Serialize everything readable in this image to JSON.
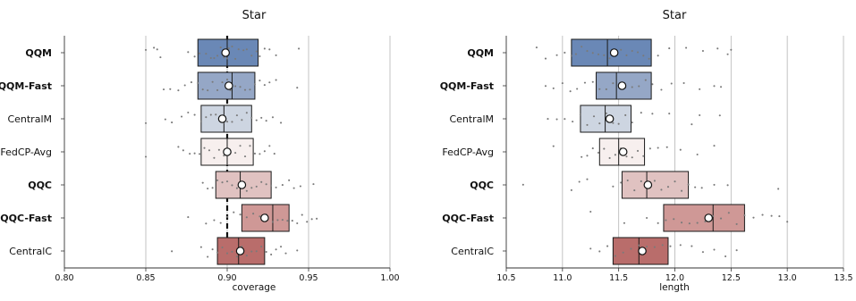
{
  "chart_data": [
    {
      "type": "box",
      "title": "Star",
      "xlabel": "coverage",
      "xlim": [
        0.8,
        1.0
      ],
      "xticks": [
        "0.80",
        "0.85",
        "0.90",
        "0.95",
        "1.00"
      ],
      "xtick_values": [
        0.8,
        0.85,
        0.9,
        0.95,
        1.0
      ],
      "grid": "vertical",
      "reference_line": 0.9,
      "categories": [
        "QQM",
        "QQM-Fast",
        "CentralM",
        "FedCP-Avg",
        "QQC",
        "QQC-Fast",
        "CentralC"
      ],
      "bold_categories": [
        "QQM",
        "QQM-Fast",
        "QQC",
        "QQC-Fast"
      ],
      "colors": [
        "#6a88b6",
        "#95a7c6",
        "#cdd5e1",
        "#f7efee",
        "#e0c2c1",
        "#cf9896",
        "#b96d6b"
      ],
      "boxes": [
        {
          "q1": 0.882,
          "median": 0.9,
          "q3": 0.919,
          "mean": 0.899,
          "points": [
            0.85,
            0.855,
            0.857,
            0.859,
            0.876,
            0.88,
            0.883,
            0.887,
            0.89,
            0.892,
            0.894,
            0.896,
            0.898,
            0.9,
            0.901,
            0.903,
            0.905,
            0.907,
            0.91,
            0.912,
            0.915,
            0.918,
            0.92,
            0.923,
            0.926,
            0.93,
            0.944
          ]
        },
        {
          "q1": 0.882,
          "median": 0.903,
          "q3": 0.917,
          "mean": 0.901,
          "points": [
            0.861,
            0.865,
            0.87,
            0.874,
            0.878,
            0.882,
            0.885,
            0.888,
            0.891,
            0.894,
            0.897,
            0.9,
            0.902,
            0.905,
            0.908,
            0.911,
            0.914,
            0.917,
            0.92,
            0.923,
            0.926,
            0.93,
            0.943
          ]
        },
        {
          "q1": 0.884,
          "median": 0.898,
          "q3": 0.915,
          "mean": 0.897,
          "points": [
            0.85,
            0.862,
            0.866,
            0.872,
            0.876,
            0.88,
            0.884,
            0.887,
            0.89,
            0.893,
            0.896,
            0.898,
            0.9,
            0.903,
            0.906,
            0.909,
            0.912,
            0.915,
            0.918,
            0.921,
            0.924,
            0.928,
            0.933
          ]
        },
        {
          "q1": 0.884,
          "median": 0.9,
          "q3": 0.916,
          "mean": 0.9,
          "points": [
            0.85,
            0.87,
            0.873,
            0.877,
            0.88,
            0.883,
            0.886,
            0.889,
            0.892,
            0.895,
            0.898,
            0.9,
            0.902,
            0.905,
            0.908,
            0.911,
            0.914,
            0.917,
            0.92,
            0.923,
            0.926,
            0.929
          ]
        },
        {
          "q1": 0.893,
          "median": 0.908,
          "q3": 0.927,
          "mean": 0.909,
          "points": [
            0.885,
            0.888,
            0.891,
            0.894,
            0.897,
            0.9,
            0.903,
            0.906,
            0.909,
            0.912,
            0.915,
            0.918,
            0.921,
            0.924,
            0.927,
            0.93,
            0.934,
            0.938,
            0.941,
            0.945,
            0.953
          ]
        },
        {
          "q1": 0.909,
          "median": 0.928,
          "q3": 0.938,
          "mean": 0.923,
          "points": [
            0.876,
            0.887,
            0.892,
            0.896,
            0.9,
            0.904,
            0.908,
            0.912,
            0.916,
            0.92,
            0.924,
            0.928,
            0.931,
            0.934,
            0.937,
            0.94,
            0.943,
            0.946,
            0.949,
            0.952,
            0.955
          ]
        },
        {
          "q1": 0.894,
          "median": 0.907,
          "q3": 0.923,
          "mean": 0.908,
          "points": [
            0.866,
            0.884,
            0.888,
            0.891,
            0.894,
            0.897,
            0.9,
            0.903,
            0.906,
            0.909,
            0.912,
            0.915,
            0.918,
            0.921,
            0.924,
            0.927,
            0.93,
            0.933,
            0.936,
            0.943
          ]
        }
      ]
    },
    {
      "type": "box",
      "title": "Star",
      "xlabel": "length",
      "xlim": [
        10.5,
        13.5
      ],
      "xticks": [
        "10.5",
        "11.0",
        "11.5",
        "12.0",
        "12.5",
        "13.0",
        "13.5"
      ],
      "xtick_values": [
        10.5,
        11.0,
        11.5,
        12.0,
        12.5,
        13.0,
        13.5
      ],
      "grid": "vertical",
      "categories": [
        "QQM",
        "QQM-Fast",
        "CentralM",
        "FedCP-Avg",
        "QQC",
        "QQC-Fast",
        "CentralC"
      ],
      "bold_categories": [
        "QQM",
        "QQM-Fast",
        "QQC",
        "QQC-Fast"
      ],
      "colors": [
        "#6a88b6",
        "#95a7c6",
        "#cdd5e1",
        "#f7efee",
        "#e0c2c1",
        "#cf9896",
        "#b96d6b"
      ],
      "boxes": [
        {
          "q1": 11.08,
          "median": 11.4,
          "q3": 11.79,
          "mean": 11.46,
          "points": [
            10.77,
            10.85,
            10.95,
            11.02,
            11.08,
            11.12,
            11.17,
            11.22,
            11.27,
            11.32,
            11.37,
            11.42,
            11.47,
            11.52,
            11.57,
            11.62,
            11.67,
            11.72,
            11.77,
            11.85,
            11.95,
            12.1,
            12.25,
            12.38,
            12.47,
            12.5
          ]
        },
        {
          "q1": 11.3,
          "median": 11.48,
          "q3": 11.79,
          "mean": 11.53,
          "points": [
            10.85,
            10.92,
            11.0,
            11.07,
            11.13,
            11.2,
            11.27,
            11.33,
            11.39,
            11.45,
            11.5,
            11.56,
            11.62,
            11.68,
            11.74,
            11.8,
            11.88,
            11.97,
            12.08,
            12.22,
            12.35,
            12.41
          ]
        },
        {
          "q1": 11.16,
          "median": 11.38,
          "q3": 11.61,
          "mean": 11.42,
          "points": [
            10.87,
            10.95,
            11.02,
            11.09,
            11.16,
            11.22,
            11.28,
            11.33,
            11.39,
            11.45,
            11.5,
            11.56,
            11.62,
            11.7,
            11.8,
            11.95,
            12.15,
            12.22,
            12.4
          ]
        },
        {
          "q1": 11.33,
          "median": 11.5,
          "q3": 11.73,
          "mean": 11.54,
          "points": [
            10.92,
            11.17,
            11.22,
            11.27,
            11.32,
            11.37,
            11.42,
            11.47,
            11.52,
            11.57,
            11.62,
            11.67,
            11.72,
            11.78,
            11.85,
            11.93,
            12.05,
            12.2,
            12.35
          ]
        },
        {
          "q1": 11.53,
          "median": 11.75,
          "q3": 12.12,
          "mean": 11.76,
          "points": [
            10.65,
            11.08,
            11.15,
            11.22,
            11.45,
            11.52,
            11.58,
            11.64,
            11.7,
            11.76,
            11.82,
            11.88,
            11.94,
            12.0,
            12.06,
            12.12,
            12.18,
            12.24,
            12.35,
            12.47,
            12.92
          ]
        },
        {
          "q1": 11.9,
          "median": 12.34,
          "q3": 12.62,
          "mean": 12.3,
          "points": [
            11.25,
            11.55,
            11.75,
            11.85,
            11.92,
            11.99,
            12.06,
            12.13,
            12.2,
            12.27,
            12.34,
            12.41,
            12.48,
            12.55,
            12.62,
            12.7,
            12.78,
            12.86,
            12.93,
            13.0
          ]
        },
        {
          "q1": 11.45,
          "median": 11.68,
          "q3": 11.94,
          "mean": 11.71,
          "points": [
            11.25,
            11.33,
            11.4,
            11.47,
            11.54,
            11.61,
            11.68,
            11.75,
            11.82,
            11.89,
            11.96,
            12.05,
            12.15,
            12.25,
            12.35,
            12.45,
            12.55
          ]
        }
      ]
    }
  ]
}
